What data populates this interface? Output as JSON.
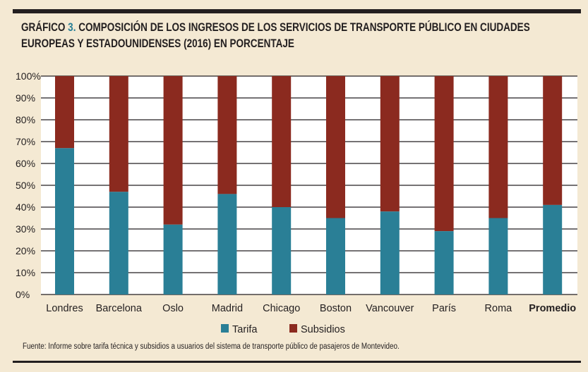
{
  "title": {
    "prefix": "GRÁFICO",
    "number": "3.",
    "line1": "COMPOSICIÓN DE LOS INGRESOS DE LOS SERVICIOS DE TRANSPORTE PÚBLICO EN CIUDADES",
    "line2": "EUROPEAS Y ESTADOUNIDENSES (2016) EN PORCENTAJE"
  },
  "source": "Fuente: Informe sobre tarifa técnica y subsidios a usuarios del sistema de transporte público de pasajeros de Montevideo.",
  "colors": {
    "tarifa": "#2a7f96",
    "subsidios": "#8b2a1f",
    "background": "#f4e9d3",
    "text": "#231f20"
  },
  "chart_data": {
    "type": "bar",
    "stacked": true,
    "title": "COMPOSICIÓN DE LOS INGRESOS DE LOS SERVICIOS DE TRANSPORTE PÚBLICO EN CIUDADES EUROPEAS Y ESTADOUNIDENSES (2016) EN PORCENTAJE",
    "categories": [
      "Londres",
      "Barcelona",
      "Oslo",
      "Madrid",
      "Chicago",
      "Boston",
      "Vancouver",
      "París",
      "Roma",
      "Promedio"
    ],
    "bold_categories": [
      "Promedio"
    ],
    "series": [
      {
        "name": "Tarifa",
        "values": [
          67,
          47,
          32,
          46,
          40,
          35,
          38,
          29,
          35,
          41
        ]
      },
      {
        "name": "Subsidios",
        "values": [
          33,
          53,
          68,
          54,
          60,
          65,
          62,
          71,
          65,
          59
        ]
      }
    ],
    "yticks": [
      "0%",
      "10%",
      "20%",
      "30%",
      "40%",
      "50%",
      "60%",
      "70%",
      "80%",
      "90%",
      "100%"
    ],
    "ylim": [
      0,
      100
    ],
    "xlabel": "",
    "ylabel": "",
    "grid": true,
    "legend": "bottom-center"
  }
}
